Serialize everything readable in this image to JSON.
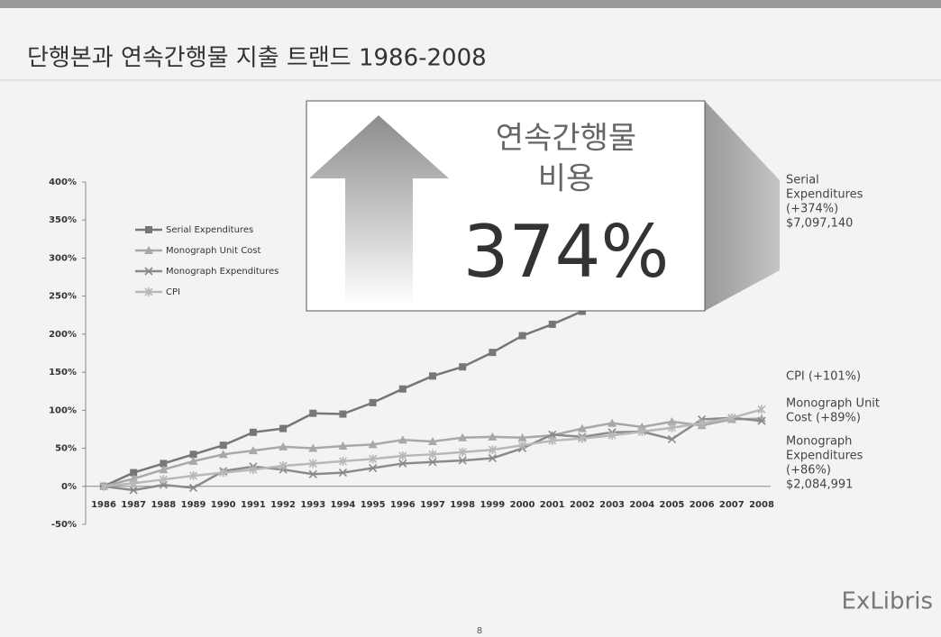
{
  "title": "단행본과 연속간행물 지출 트랜드 1986-2008",
  "callout": {
    "lines": [
      "연속간행물",
      "비용"
    ],
    "value": "374%"
  },
  "footer": {
    "logo": "ExLibris",
    "page": "8"
  },
  "chart_data": {
    "type": "line",
    "categories": [
      "1986",
      "1987",
      "1988",
      "1989",
      "1990",
      "1991",
      "1992",
      "1993",
      "1994",
      "1995",
      "1996",
      "1997",
      "1998",
      "1999",
      "2000",
      "2001",
      "2002",
      "2003",
      "2004",
      "2005",
      "2006",
      "2007",
      "2008"
    ],
    "series": [
      {
        "name": "Serial Expenditures",
        "color": "#777777",
        "marker": "square",
        "values": [
          0,
          18,
          30,
          42,
          54,
          71,
          76,
          96,
          95,
          110,
          128,
          145,
          157,
          176,
          198,
          213,
          230,
          252,
          275,
          298,
          322,
          343,
          374
        ]
      },
      {
        "name": "Monograph Unit Cost",
        "color": "#a8a8a8",
        "marker": "triangle",
        "values": [
          0,
          10,
          22,
          33,
          42,
          47,
          52,
          50,
          53,
          55,
          61,
          59,
          64,
          65,
          64,
          67,
          76,
          83,
          78,
          85,
          80,
          88,
          89
        ]
      },
      {
        "name": "Monograph Expenditures",
        "color": "#8a8a8a",
        "marker": "x",
        "values": [
          0,
          -5,
          2,
          -2,
          20,
          26,
          22,
          16,
          18,
          24,
          30,
          32,
          34,
          37,
          50,
          68,
          65,
          71,
          72,
          62,
          88,
          90,
          86
        ]
      },
      {
        "name": "CPI",
        "color": "#b8b8b8",
        "marker": "star",
        "values": [
          0,
          4,
          9,
          14,
          18,
          22,
          27,
          30,
          33,
          36,
          40,
          42,
          45,
          48,
          54,
          60,
          63,
          67,
          72,
          77,
          83,
          90,
          101
        ]
      }
    ],
    "ylim": [
      -50,
      400
    ],
    "yticks": [
      {
        "value": -50,
        "label": "-50%"
      },
      {
        "value": 0,
        "label": "0%"
      },
      {
        "value": 50,
        "label": "50%"
      },
      {
        "value": 100,
        "label": "100%"
      },
      {
        "value": 150,
        "label": "150%"
      },
      {
        "value": 200,
        "label": "200%"
      },
      {
        "value": 250,
        "label": "250%"
      },
      {
        "value": 300,
        "label": "300%"
      },
      {
        "value": 350,
        "label": "350%"
      },
      {
        "value": 400,
        "label": "400%"
      }
    ],
    "annotations": [
      [
        "Serial",
        "Expenditures",
        "(+374%)",
        "$7,097,140"
      ],
      [
        "CPI (+101%)"
      ],
      [
        "Monograph Unit",
        "Cost (+89%)"
      ],
      [
        "Monograph",
        "Expenditures",
        "(+86%)",
        "$2,084,991"
      ]
    ]
  }
}
